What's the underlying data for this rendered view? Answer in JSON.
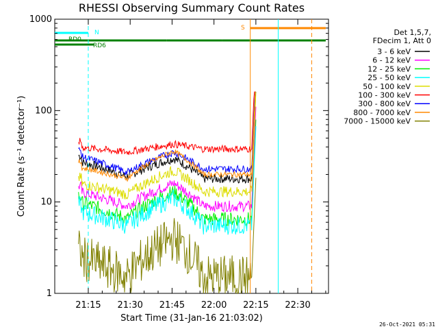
{
  "chart_data": {
    "type": "line",
    "title": "RHESSI Observing Summary Count Rates",
    "xlabel": "Start Time (31-Jan-16 21:03:02)",
    "ylabel": "Count Rate (s⁻¹ detector⁻¹)",
    "ylim": [
      1,
      1000
    ],
    "yscale": "log",
    "xlim_minutes": [
      0,
      98
    ],
    "x_ticks": [
      "21:15",
      "21:30",
      "21:45",
      "22:00",
      "22:15",
      "22:30"
    ],
    "y_ticks": [
      "1",
      "10",
      "100",
      "1000"
    ],
    "legend_header": [
      "Det 1,5,7,",
      "FDecim 1, Att 0"
    ],
    "legend_position": "right",
    "series": [
      {
        "name": "3 - 6 keV",
        "color": "#000000",
        "start": 8.5,
        "end": 70.5,
        "left": 28,
        "mid": 19,
        "peak": 30,
        "right": 18,
        "noise": 0.05
      },
      {
        "name": "6 - 12 keV",
        "color": "#ff00ff",
        "start": 8.5,
        "end": 70.5,
        "left": 13,
        "mid": 9,
        "peak": 16,
        "right": 9,
        "noise": 0.06
      },
      {
        "name": "12 - 25 keV",
        "color": "#00ee00",
        "start": 8.5,
        "end": 70.5,
        "left": 10,
        "mid": 6.5,
        "peak": 13,
        "right": 6.5,
        "noise": 0.08
      },
      {
        "name": "25 - 50 keV",
        "color": "#00ffff",
        "start": 8.5,
        "end": 70.5,
        "left": 8,
        "mid": 5.5,
        "peak": 11,
        "right": 5.5,
        "noise": 0.1
      },
      {
        "name": "50 - 100 keV",
        "color": "#dddd00",
        "start": 8.5,
        "end": 70.5,
        "left": 16,
        "mid": 12,
        "peak": 22,
        "right": 13,
        "noise": 0.06
      },
      {
        "name": "100 - 300 keV",
        "color": "#ff0000",
        "start": 8.5,
        "end": 70.5,
        "left": 40,
        "mid": 35,
        "peak": 43,
        "right": 38,
        "noise": 0.04
      },
      {
        "name": "300 - 800 keV",
        "color": "#0000ff",
        "start": 8.5,
        "end": 70.5,
        "left": 32,
        "mid": 21,
        "peak": 35,
        "right": 23,
        "noise": 0.04
      },
      {
        "name": "800 - 7000 keV",
        "color": "#ff8800",
        "start": 8.5,
        "end": 70.5,
        "left": 24,
        "mid": 18,
        "peak": 36,
        "right": 20,
        "noise": 0.03
      },
      {
        "name": "7000 - 15000 keV",
        "color": "#808000",
        "start": 8.5,
        "end": 70.5,
        "left": 2.5,
        "mid": 1.5,
        "peak": 4,
        "right": 1.5,
        "noise": 0.25
      }
    ],
    "flag_bars": [
      {
        "label": "RD0",
        "color": "#008000",
        "y": 59,
        "segments": [
          [
            0,
            40
          ],
          [
            40,
            60
          ],
          [
            60,
            71
          ],
          [
            60,
            97
          ]
        ]
      },
      {
        "label": "RD6",
        "color": "#008000",
        "y": 65,
        "segments": [
          [
            0,
            8
          ],
          [
            0,
            14
          ]
        ]
      },
      {
        "label": "N",
        "color": "#00ffff",
        "y": 48,
        "segments": [
          [
            0,
            12
          ]
        ]
      },
      {
        "label": "S",
        "color": "#ff8800",
        "y": 41,
        "segments": [
          [
            70,
            97
          ]
        ]
      }
    ],
    "vertical_markers": [
      {
        "x": 12,
        "color": "#00ffff",
        "style": "dashed"
      },
      {
        "x": 70,
        "color": "#ff8800",
        "style": "solid"
      },
      {
        "x": 80,
        "color": "#00ffff",
        "style": "solid"
      },
      {
        "x": 92,
        "color": "#ff8800",
        "style": "dashed"
      }
    ]
  },
  "footer_timestamp": "26-Oct-2021 05:31"
}
